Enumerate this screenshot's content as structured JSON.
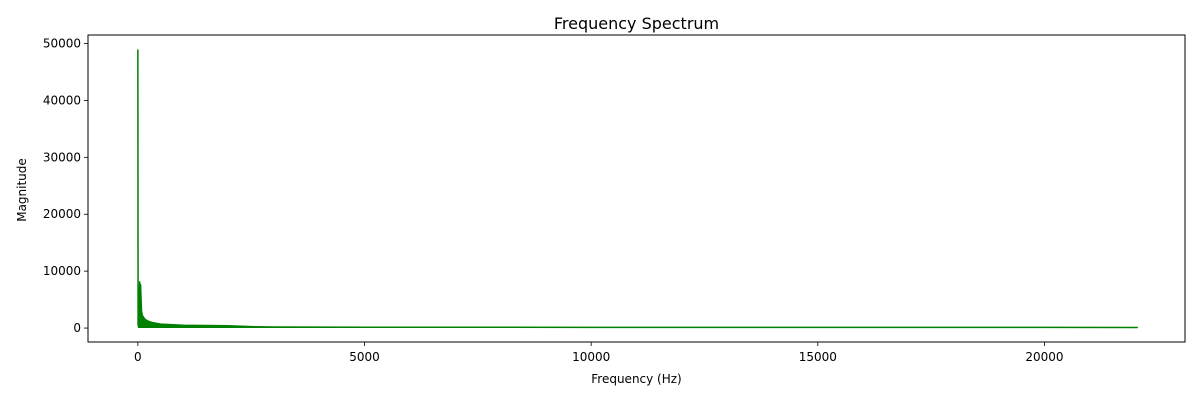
{
  "chart_data": {
    "type": "line",
    "title": "Frequency Spectrum",
    "xlabel": "Frequency (Hz)",
    "ylabel": "Magnitude",
    "xlim": [
      -1100,
      23100
    ],
    "ylim": [
      -2450,
      51500
    ],
    "xticks": [
      0,
      5000,
      10000,
      15000,
      20000
    ],
    "yticks": [
      0,
      10000,
      20000,
      30000,
      40000,
      50000
    ],
    "xtick_labels": [
      "0",
      "5000",
      "10000",
      "15000",
      "20000"
    ],
    "ytick_labels": [
      "0",
      "10000",
      "20000",
      "30000",
      "40000",
      "50000"
    ],
    "grid": false,
    "legend": "none",
    "series": [
      {
        "color": "#008000",
        "points": [
          [
            0,
            48900
          ],
          [
            5,
            500
          ],
          [
            20,
            2000
          ],
          [
            40,
            8100
          ],
          [
            50,
            4000
          ],
          [
            60,
            7600
          ],
          [
            80,
            3000
          ],
          [
            100,
            2200
          ],
          [
            150,
            1600
          ],
          [
            200,
            1300
          ],
          [
            300,
            1000
          ],
          [
            500,
            700
          ],
          [
            1000,
            500
          ],
          [
            1500,
            450
          ],
          [
            2000,
            400
          ],
          [
            2500,
            250
          ],
          [
            3000,
            180
          ],
          [
            5000,
            150
          ],
          [
            10000,
            130
          ],
          [
            15000,
            120
          ],
          [
            20000,
            110
          ],
          [
            22050,
            100
          ]
        ],
        "noise_floor": 0
      }
    ]
  }
}
